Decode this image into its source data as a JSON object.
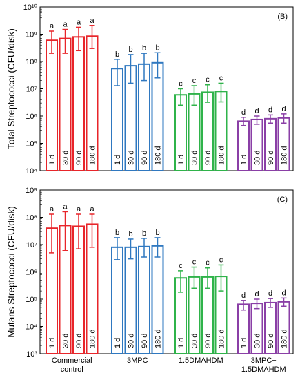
{
  "figure_groups": [
    "Commercial\ncontrol",
    "3MPC",
    "1.5DMAHDM",
    "3MPC+\n1.5DMAHDM"
  ],
  "group_colors": [
    "#e8252a",
    "#2f78c0",
    "#2fb34a",
    "#8a3fa6"
  ],
  "chart_data": [
    {
      "type": "bar",
      "panel_label": "(B)",
      "ylabel": "Total Streptococci (CFU/disk)",
      "yscale": "log",
      "ylim": [
        10000,
        10000000000
      ],
      "y_tick_labels": [
        "10⁴",
        "10⁵",
        "10⁶",
        "10⁷",
        "10⁸",
        "10⁹",
        "10¹⁰"
      ],
      "categories": [
        "1 d",
        "30 d",
        "90 d",
        "180 d"
      ],
      "series": [
        {
          "group": "Commercial control",
          "values": [
            600000000,
            700000000,
            800000000,
            850000000
          ],
          "error_low": [
            200000000,
            200000000,
            250000000,
            300000000
          ],
          "error_high": [
            1300000000,
            1500000000,
            1800000000,
            2100000000
          ],
          "letters": [
            "a",
            "a",
            "a",
            "a"
          ]
        },
        {
          "group": "3MPC",
          "values": [
            55000000,
            70000000,
            80000000,
            90000000
          ],
          "error_low": [
            13000000,
            16000000,
            20000000,
            25000000
          ],
          "error_high": [
            120000000,
            180000000,
            200000000,
            210000000
          ],
          "letters": [
            "b",
            "b",
            "b",
            "b"
          ]
        },
        {
          "group": "1.5DMAHDM",
          "values": [
            6000000,
            6500000,
            7500000,
            8000000
          ],
          "error_low": [
            2500000,
            2500000,
            3200000,
            3300000
          ],
          "error_high": [
            10000000,
            13000000,
            14000000,
            16000000
          ],
          "letters": [
            "c",
            "c",
            "c",
            "c"
          ]
        },
        {
          "group": "3MPC+1.5DMAHDM",
          "values": [
            650000,
            750000,
            800000,
            850000
          ],
          "error_low": [
            450000,
            500000,
            550000,
            550000
          ],
          "error_high": [
            900000,
            1000000,
            1100000,
            1200000
          ],
          "letters": [
            "d",
            "d",
            "d",
            "d"
          ]
        }
      ]
    },
    {
      "type": "bar",
      "panel_label": "(C)",
      "ylabel": "Mutans Streptococci (CFU/disk)",
      "yscale": "log",
      "ylim": [
        1000,
        1000000000
      ],
      "y_tick_labels": [
        "10³",
        "10⁴",
        "10⁵",
        "10⁶",
        "10⁷",
        "10⁸",
        "10⁹"
      ],
      "categories": [
        "1 d",
        "30 d",
        "90 d",
        "180 d"
      ],
      "series": [
        {
          "group": "Commercial control",
          "values": [
            40000000,
            50000000,
            47000000,
            56000000
          ],
          "error_low": [
            5000000,
            6000000,
            7000000,
            8000000
          ],
          "error_high": [
            130000000,
            160000000,
            130000000,
            130000000
          ],
          "letters": [
            "a",
            "a",
            "a",
            "a"
          ]
        },
        {
          "group": "3MPC",
          "values": [
            8000000,
            8000000,
            8500000,
            9000000
          ],
          "error_low": [
            2800000,
            3000000,
            3500000,
            3500000
          ],
          "error_high": [
            18000000,
            16000000,
            17000000,
            18000000
          ],
          "letters": [
            "b",
            "b",
            "b",
            "b"
          ]
        },
        {
          "group": "1.5DMAHDM",
          "values": [
            600000,
            650000,
            650000,
            680000
          ],
          "error_low": [
            180000,
            250000,
            250000,
            200000
          ],
          "error_high": [
            1100000,
            1500000,
            1400000,
            1800000
          ],
          "letters": [
            "c",
            "c",
            "c",
            "c"
          ]
        },
        {
          "group": "3MPC+1.5DMAHDM",
          "values": [
            65000,
            70000,
            75000,
            80000
          ],
          "error_low": [
            40000,
            45000,
            50000,
            55000
          ],
          "error_high": [
            90000,
            100000,
            105000,
            110000
          ],
          "letters": [
            "d",
            "d",
            "d",
            "d"
          ]
        }
      ]
    }
  ]
}
